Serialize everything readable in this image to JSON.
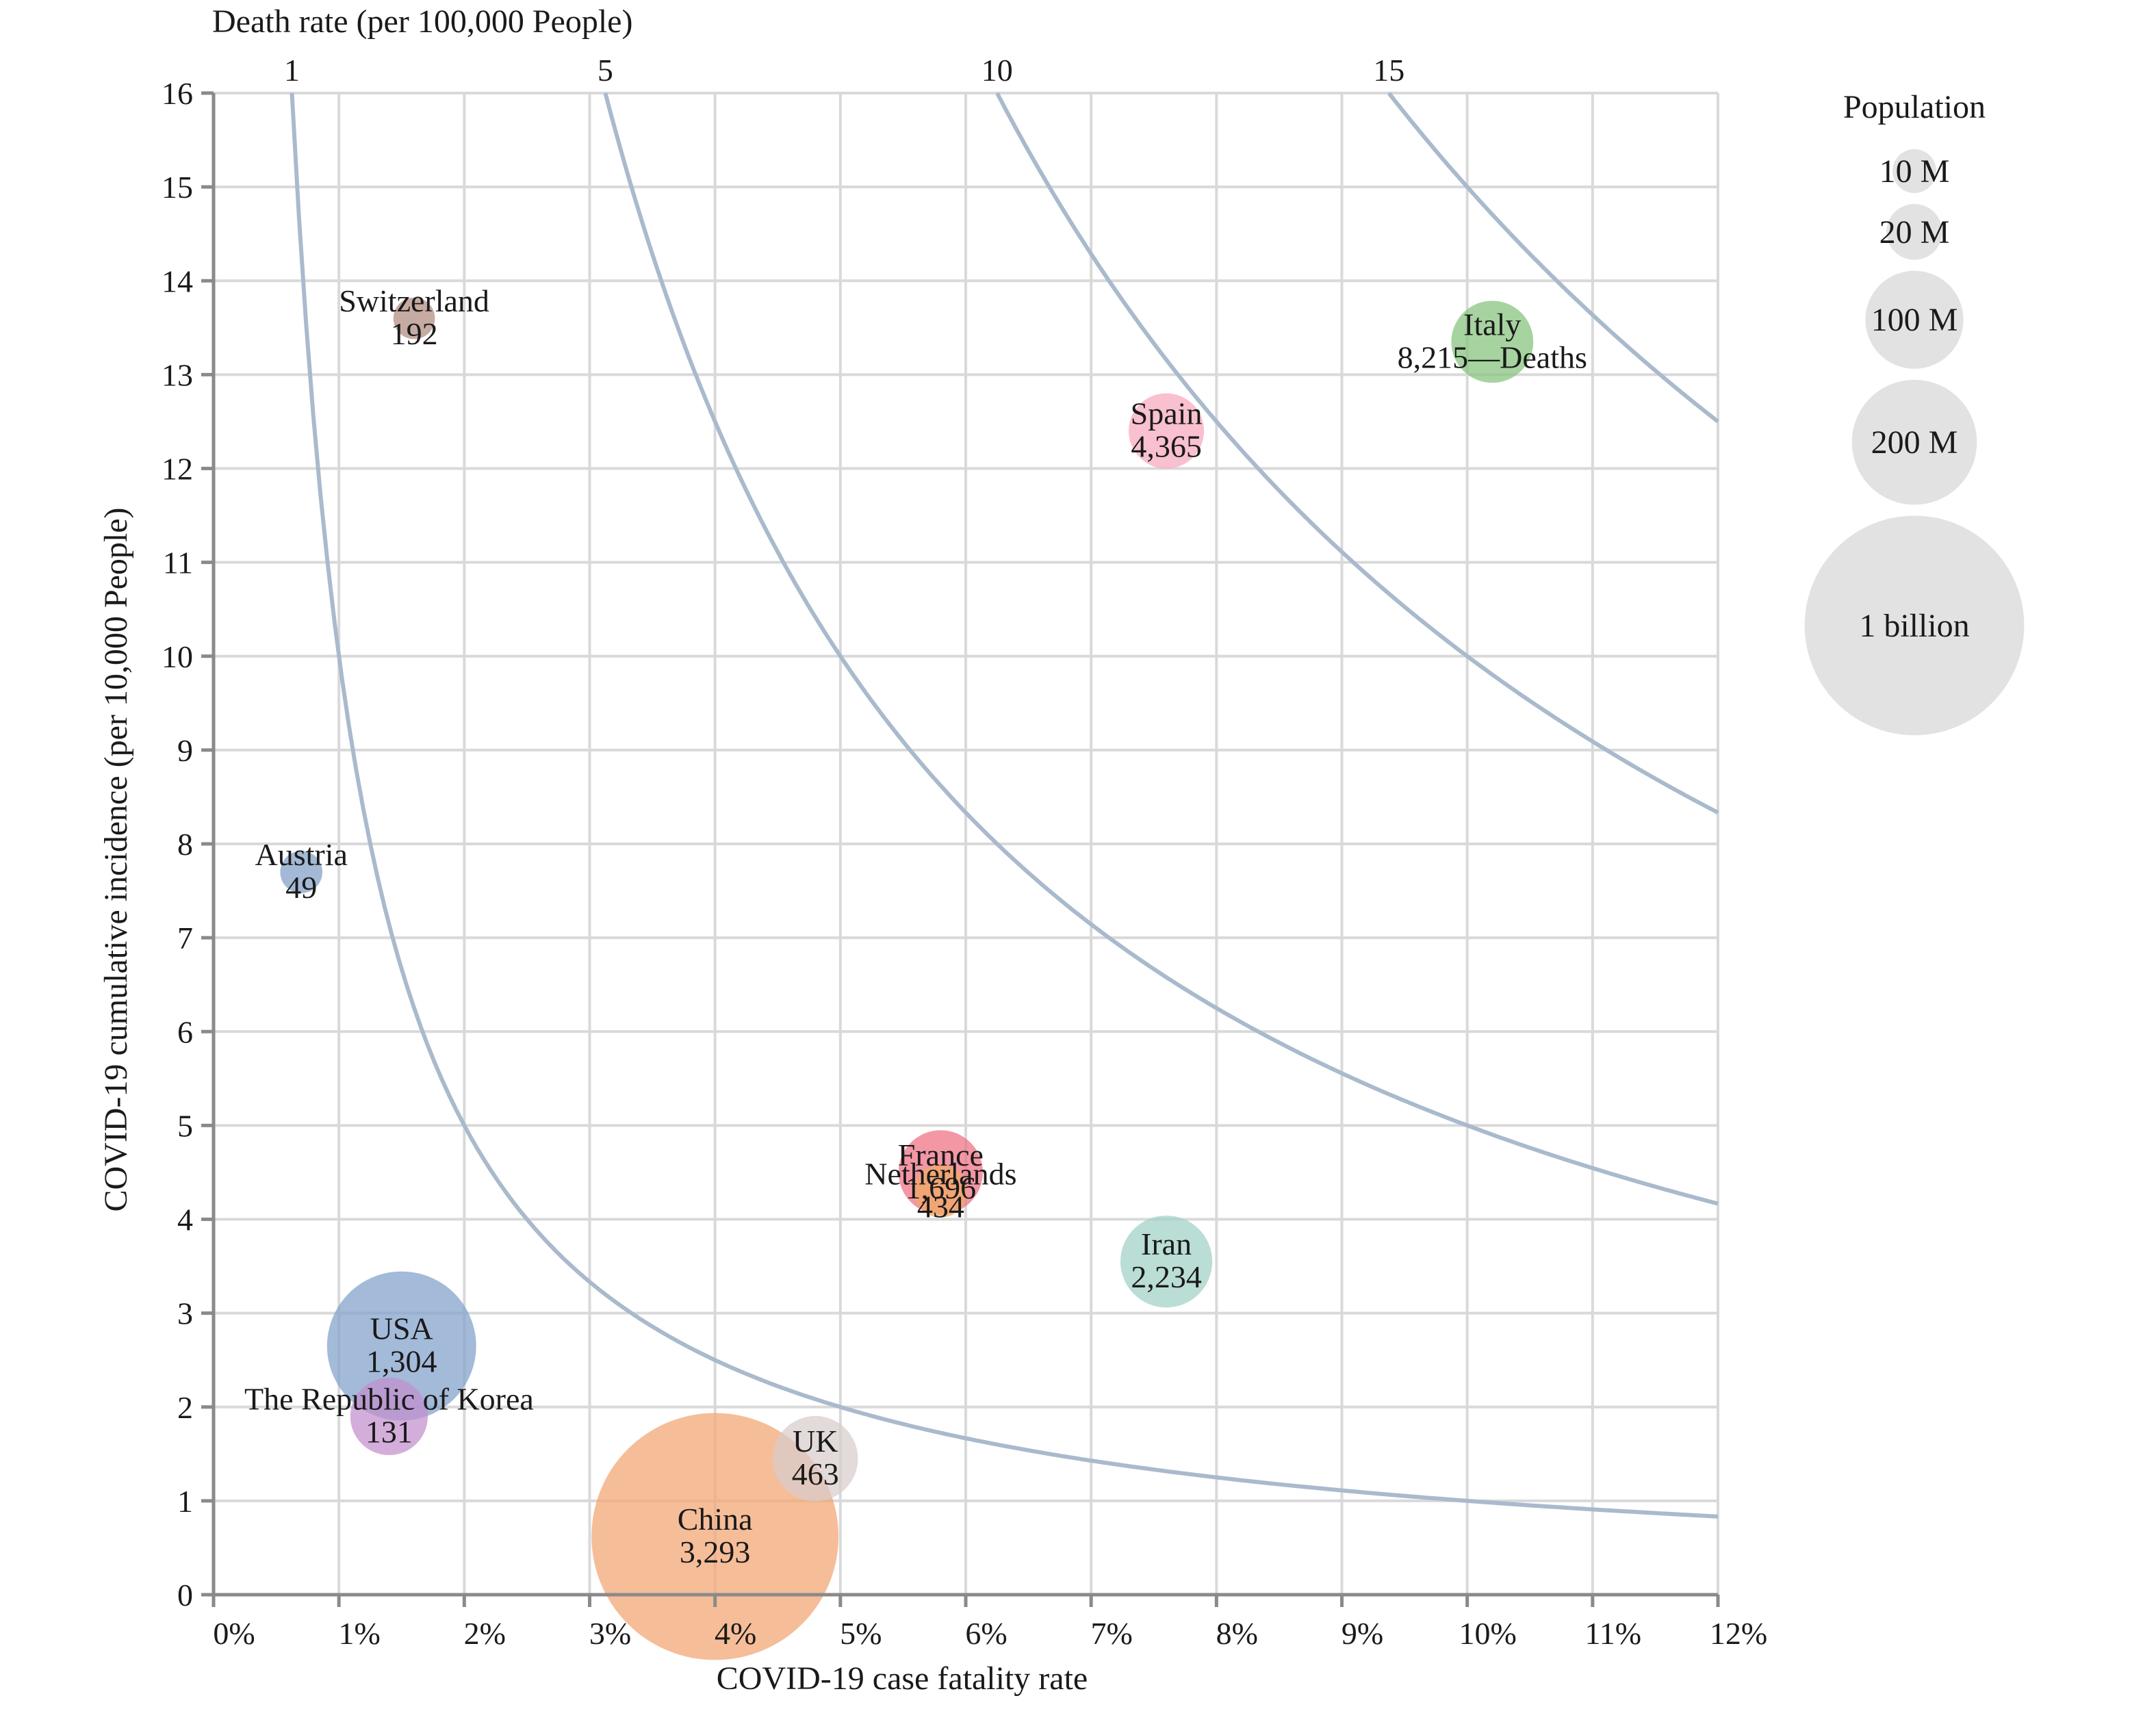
{
  "chart_data": {
    "type": "scatter",
    "xlabel": "COVID-19 case fatality rate",
    "ylabel": "COVID-19 cumulative incidence (per 10,000 People)",
    "top_axis_title": "Death rate (per 100,000 People)",
    "xlim": [
      0,
      0.12
    ],
    "ylim": [
      0,
      16
    ],
    "x_ticks": [
      0,
      0.01,
      0.02,
      0.03,
      0.04,
      0.05,
      0.06,
      0.07,
      0.08,
      0.09,
      0.1,
      0.11,
      0.12
    ],
    "x_tick_labels": [
      "0%",
      "1%",
      "2%",
      "3%",
      "4%",
      "5%",
      "6%",
      "7%",
      "8%",
      "9%",
      "10%",
      "11%",
      "12%"
    ],
    "y_ticks": [
      0,
      1,
      2,
      3,
      4,
      5,
      6,
      7,
      8,
      9,
      10,
      11,
      12,
      13,
      14,
      15,
      16
    ],
    "y_tick_labels": [
      "0",
      "1",
      "2",
      "3",
      "4",
      "5",
      "6",
      "7",
      "8",
      "9",
      "10",
      "11",
      "12",
      "13",
      "14",
      "15",
      "16"
    ],
    "grid": true,
    "iso_death_rate_curves": [
      {
        "label": "1",
        "value": 1
      },
      {
        "label": "5",
        "value": 5
      },
      {
        "label": "10",
        "value": 10
      },
      {
        "label": "15",
        "value": 15
      }
    ],
    "points": [
      {
        "country": "Italy",
        "deaths_label": "8,215—Deaths",
        "cfr": 0.102,
        "incidence": 13.35,
        "population_m": 60,
        "color": "#84c27a"
      },
      {
        "country": "Spain",
        "deaths_label": "4,365",
        "cfr": 0.076,
        "incidence": 12.4,
        "population_m": 47,
        "color": "#f7a8bd"
      },
      {
        "country": "Switzerland",
        "deaths_label": "192",
        "cfr": 0.016,
        "incidence": 13.6,
        "population_m": 8.6,
        "color": "#b08b80"
      },
      {
        "country": "Austria",
        "deaths_label": "49",
        "cfr": 0.007,
        "incidence": 7.7,
        "population_m": 9,
        "color": "#7f9ec5"
      },
      {
        "country": "France",
        "deaths_label": "1,696",
        "cfr": 0.058,
        "incidence": 4.5,
        "population_m": 65,
        "color": "#ef6f82"
      },
      {
        "country": "Netherlands",
        "deaths_label": "434",
        "cfr": 0.058,
        "incidence": 4.3,
        "population_m": 17,
        "color": "#f0aa62"
      },
      {
        "country": "Iran",
        "deaths_label": "2,234",
        "cfr": 0.076,
        "incidence": 3.55,
        "population_m": 83,
        "color": "#9fd0c5"
      },
      {
        "country": "USA",
        "deaths_label": "1,304",
        "cfr": 0.015,
        "incidence": 2.65,
        "population_m": 331,
        "color": "#809fca"
      },
      {
        "country": "The Republic of Korea",
        "deaths_label": "131",
        "cfr": 0.014,
        "incidence": 1.9,
        "population_m": 51,
        "color": "#c48fcd"
      },
      {
        "country": "UK",
        "deaths_label": "463",
        "cfr": 0.048,
        "incidence": 1.45,
        "population_m": 67,
        "color": "#d8cccc"
      },
      {
        "country": "China",
        "deaths_label": "3,293",
        "cfr": 0.04,
        "incidence": 0.62,
        "population_m": 1400,
        "color": "#f3a472"
      }
    ],
    "size_legend": {
      "title": "Population",
      "entries": [
        {
          "label": "10 M",
          "population_m": 10
        },
        {
          "label": "20 M",
          "population_m": 20
        },
        {
          "label": "100 M",
          "population_m": 100
        },
        {
          "label": "200 M",
          "population_m": 200
        },
        {
          "label": "1 billion",
          "population_m": 1000
        }
      ]
    },
    "colors": {
      "grid": "#d9d9d9",
      "axis": "#8a8a8a",
      "curve": "#a9bacd",
      "legend_bubble": "#e2e2e2"
    }
  }
}
